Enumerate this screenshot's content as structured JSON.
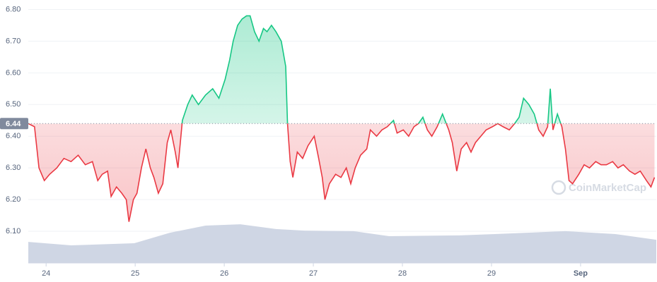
{
  "chart_data": {
    "type": "line",
    "x": [
      -0.2,
      -0.13,
      -0.08,
      -0.02,
      0.04,
      0.12,
      0.2,
      0.28,
      0.36,
      0.44,
      0.52,
      0.58,
      0.63,
      0.69,
      0.73,
      0.79,
      0.85,
      0.9,
      0.93,
      0.98,
      1.02,
      1.07,
      1.12,
      1.17,
      1.21,
      1.26,
      1.31,
      1.36,
      1.4,
      1.45,
      1.48,
      1.53,
      1.59,
      1.64,
      1.71,
      1.79,
      1.87,
      1.94,
      2.01,
      2.06,
      2.1,
      2.15,
      2.2,
      2.25,
      2.29,
      2.34,
      2.39,
      2.44,
      2.48,
      2.53,
      2.58,
      2.64,
      2.69,
      2.71,
      2.74,
      2.77,
      2.82,
      2.88,
      2.94,
      3.01,
      3.06,
      3.1,
      3.13,
      3.18,
      3.25,
      3.31,
      3.37,
      3.42,
      3.47,
      3.53,
      3.6,
      3.64,
      3.71,
      3.77,
      3.83,
      3.9,
      3.94,
      4.01,
      4.07,
      4.13,
      4.18,
      4.23,
      4.28,
      4.33,
      4.39,
      4.45,
      4.52,
      4.56,
      4.61,
      4.66,
      4.72,
      4.77,
      4.82,
      4.88,
      4.94,
      5.01,
      5.07,
      5.13,
      5.2,
      5.26,
      5.31,
      5.36,
      5.42,
      5.48,
      5.53,
      5.58,
      5.63,
      5.66,
      5.69,
      5.74,
      5.79,
      5.83,
      5.87,
      5.91,
      5.98,
      6.04,
      6.1,
      6.17,
      6.23,
      6.29,
      6.36,
      6.42,
      6.48,
      6.55,
      6.61,
      6.67,
      6.74,
      6.79,
      6.83
    ],
    "values": [
      6.44,
      6.43,
      6.3,
      6.26,
      6.28,
      6.3,
      6.33,
      6.32,
      6.34,
      6.31,
      6.32,
      6.26,
      6.28,
      6.29,
      6.21,
      6.24,
      6.22,
      6.2,
      6.13,
      6.2,
      6.22,
      6.3,
      6.36,
      6.3,
      6.27,
      6.22,
      6.25,
      6.38,
      6.42,
      6.35,
      6.3,
      6.45,
      6.5,
      6.53,
      6.5,
      6.53,
      6.55,
      6.52,
      6.58,
      6.64,
      6.7,
      6.75,
      6.77,
      6.78,
      6.78,
      6.73,
      6.7,
      6.74,
      6.73,
      6.75,
      6.73,
      6.7,
      6.62,
      6.44,
      6.32,
      6.27,
      6.35,
      6.33,
      6.37,
      6.4,
      6.33,
      6.27,
      6.2,
      6.25,
      6.28,
      6.27,
      6.3,
      6.25,
      6.3,
      6.34,
      6.36,
      6.42,
      6.4,
      6.42,
      6.43,
      6.45,
      6.41,
      6.42,
      6.4,
      6.43,
      6.44,
      6.46,
      6.42,
      6.4,
      6.43,
      6.47,
      6.42,
      6.38,
      6.29,
      6.36,
      6.38,
      6.35,
      6.38,
      6.4,
      6.42,
      6.43,
      6.44,
      6.43,
      6.42,
      6.44,
      6.46,
      6.52,
      6.5,
      6.47,
      6.42,
      6.4,
      6.43,
      6.55,
      6.42,
      6.47,
      6.43,
      6.36,
      6.26,
      6.25,
      6.28,
      6.31,
      6.3,
      6.32,
      6.31,
      6.31,
      6.32,
      6.3,
      6.31,
      6.29,
      6.28,
      6.29,
      6.26,
      6.24,
      6.27
    ],
    "up_color": "#16c784",
    "down_color": "#ea3943",
    "baseline": {
      "value": 6.44,
      "label": "6.44"
    },
    "xlim": [
      -0.2,
      6.85
    ],
    "xticks": [
      {
        "value": 0,
        "label": "24"
      },
      {
        "value": 1,
        "label": "25"
      },
      {
        "value": 2,
        "label": "26"
      },
      {
        "value": 3,
        "label": "27"
      },
      {
        "value": 4,
        "label": "28"
      },
      {
        "value": 5,
        "label": "29"
      },
      {
        "value": 6,
        "label": "Sep"
      }
    ],
    "ylim": [
      6.0,
      6.83
    ],
    "yticks": [
      {
        "value": 6.1,
        "label": "6.10"
      },
      {
        "value": 6.2,
        "label": "6.20"
      },
      {
        "value": 6.3,
        "label": "6.30"
      },
      {
        "value": 6.4,
        "label": "6.40"
      },
      {
        "value": 6.5,
        "label": "6.50"
      },
      {
        "value": 6.6,
        "label": "6.60"
      },
      {
        "value": 6.7,
        "label": "6.70"
      },
      {
        "value": 6.8,
        "label": "6.80"
      }
    ],
    "grid": true,
    "volume": {
      "x": [
        -0.2,
        0.28,
        0.99,
        1.39,
        1.79,
        2.18,
        2.58,
        2.9,
        3.45,
        3.85,
        4.64,
        5.04,
        5.83,
        6.39,
        6.85
      ],
      "values": [
        8.0,
        6.7,
        7.5,
        11.5,
        14.2,
        14.7,
        12.9,
        12.3,
        12.1,
        10.2,
        10.5,
        11.0,
        12.1,
        11.0,
        8.8
      ],
      "color": "#cfd6e4",
      "axis": "y2"
    },
    "y2lim": [
      0,
      100
    ],
    "watermark": "CoinMarketCap"
  }
}
